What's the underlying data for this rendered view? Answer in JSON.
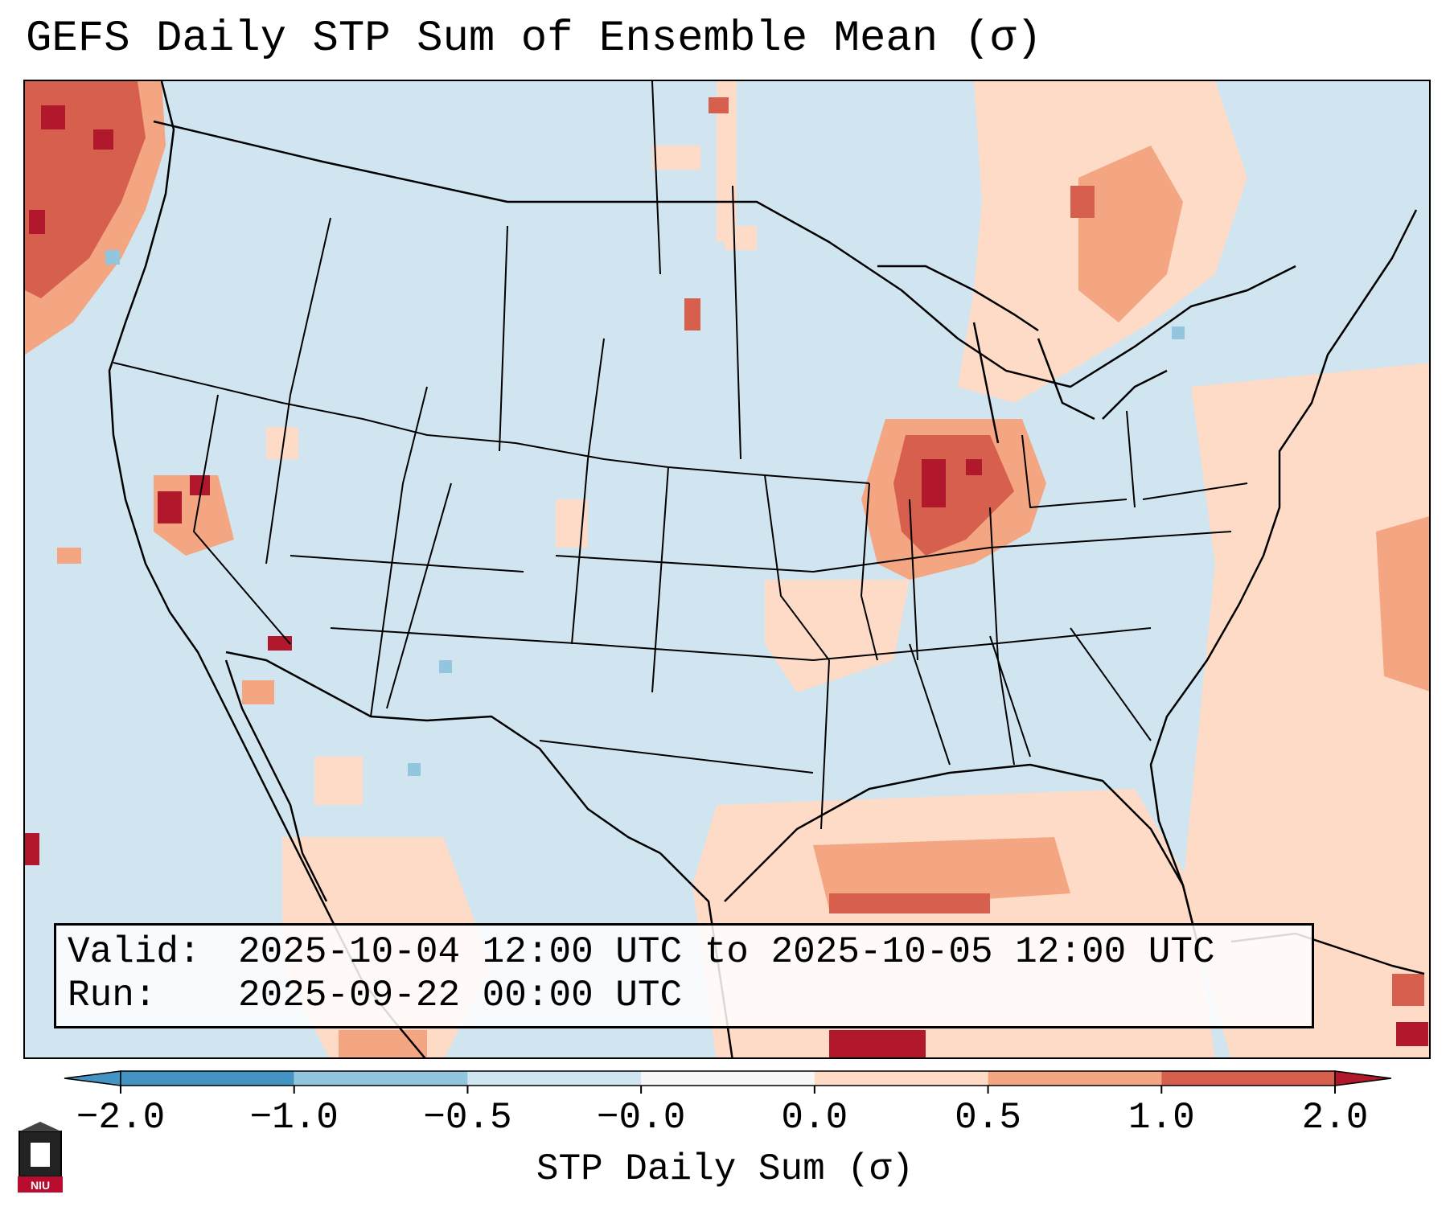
{
  "title": "GEFS Daily STP Sum of Ensemble Mean (σ)",
  "info": {
    "valid_label": "Valid:",
    "valid_value": "2025-10-04 12:00 UTC to 2025-10-05 12:00 UTC",
    "run_label": "Run:",
    "run_value": "2025-09-22 00:00 UTC"
  },
  "colorbar": {
    "label": "STP Daily Sum (σ)",
    "ticks": [
      "−2.0",
      "−1.0",
      "−0.5",
      "−0.0",
      "0.0",
      "0.5",
      "1.0",
      "2.0"
    ],
    "colors": [
      "#4393c3",
      "#92c5de",
      "#d1e5f0",
      "#f7f7f7",
      "#fddbc7",
      "#f4a582",
      "#d6604d",
      "#b2182b"
    ],
    "extend": "both"
  },
  "logo": {
    "text": "NIU",
    "primary": "#ba0c2f"
  },
  "map": {
    "background": "#d1e5f0",
    "field_legend": {
      "weak_positive": "#fddbc7",
      "moderate_positive": "#f4a582",
      "strong_positive": "#d6604d",
      "extreme_positive": "#b2182b",
      "weak_negative": "#92c5de"
    }
  }
}
